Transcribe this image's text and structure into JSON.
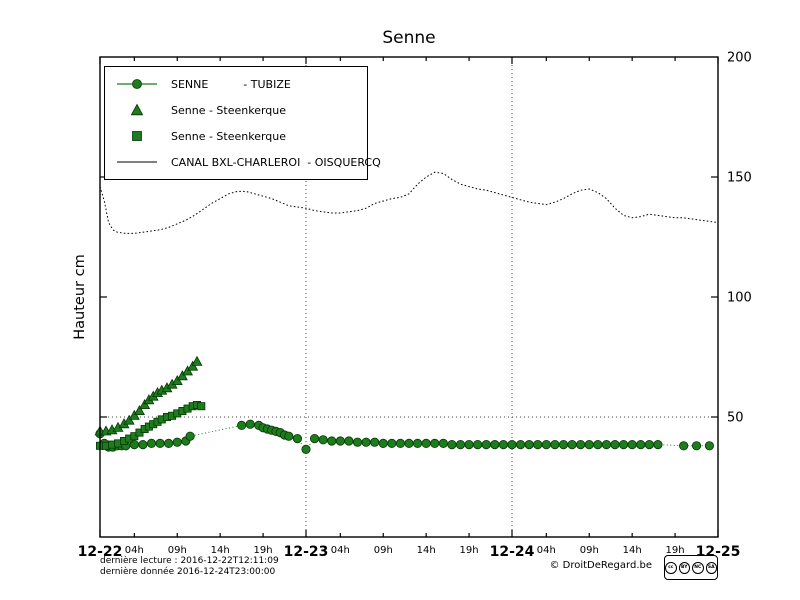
{
  "title": "Senne",
  "ylabel": "Hauteur cm",
  "legend": {
    "items": [
      {
        "label": "SENNE          - TUBIZE",
        "marker": "circle-line"
      },
      {
        "label": "Senne - Steenkerque",
        "marker": "triangle"
      },
      {
        "label": "Senne - Steenkerque",
        "marker": "square"
      },
      {
        "label": "CANAL BXL-CHARLEROI  - OISQUERCQ",
        "marker": "line"
      }
    ]
  },
  "footer": {
    "last_reading": "dernière lecture : 2016-12-22T12:11:09",
    "last_data": "dernière donnée  2016-12-24T23:00:00",
    "credit": "© DroitDeRegard.be",
    "license": "CC BY-NC-SA",
    "license_parts": [
      "cc",
      "BY",
      "NC",
      "SA"
    ]
  },
  "colors": {
    "series_green": "#1e7b1e",
    "series_black": "#000000",
    "grid": "#444444"
  },
  "chart_data": {
    "type": "line",
    "title": "Senne",
    "xlabel": "",
    "ylabel": "Hauteur cm",
    "ylim": [
      0,
      200
    ],
    "x_unit": "hours from 12-22 00:00",
    "xlim": [
      0,
      72
    ],
    "grid": {
      "vertical_t": [
        24,
        48
      ],
      "horizontal_v": [
        50
      ]
    },
    "x_ticks_major": [
      {
        "t": 0,
        "label": "12-22"
      },
      {
        "t": 24,
        "label": "12-23"
      },
      {
        "t": 48,
        "label": "12-24"
      },
      {
        "t": 72,
        "label": "12-25"
      }
    ],
    "x_ticks_minor": [
      {
        "t": 4,
        "label": "04h"
      },
      {
        "t": 9,
        "label": "09h"
      },
      {
        "t": 14,
        "label": "14h"
      },
      {
        "t": 19,
        "label": "19h"
      },
      {
        "t": 28,
        "label": "04h"
      },
      {
        "t": 33,
        "label": "09h"
      },
      {
        "t": 38,
        "label": "14h"
      },
      {
        "t": 43,
        "label": "19h"
      },
      {
        "t": 52,
        "label": "04h"
      },
      {
        "t": 57,
        "label": "09h"
      },
      {
        "t": 62,
        "label": "14h"
      },
      {
        "t": 67,
        "label": "19h"
      }
    ],
    "y_ticks": [
      {
        "v": 50,
        "label": "50"
      },
      {
        "v": 100,
        "label": "100"
      },
      {
        "v": 150,
        "label": "150"
      },
      {
        "v": 200,
        "label": "200"
      }
    ],
    "series": [
      {
        "id": "canal-oisquercq",
        "name": "CANAL BXL-CHARLEROI - OISQUERCQ",
        "marker": "none",
        "line": "dotted",
        "color": "#000000",
        "points": [
          [
            0,
            146
          ],
          [
            0.5,
            140
          ],
          [
            1,
            131
          ],
          [
            1.5,
            128
          ],
          [
            2,
            127
          ],
          [
            3,
            126.5
          ],
          [
            4,
            126.5
          ],
          [
            5,
            127
          ],
          [
            6,
            127.5
          ],
          [
            7,
            128
          ],
          [
            8,
            129
          ],
          [
            9,
            130.5
          ],
          [
            10,
            132
          ],
          [
            11,
            134
          ],
          [
            12,
            136.5
          ],
          [
            13,
            139
          ],
          [
            14,
            141
          ],
          [
            15,
            143
          ],
          [
            16,
            144
          ],
          [
            17,
            144
          ],
          [
            18,
            143
          ],
          [
            19,
            142
          ],
          [
            20,
            141
          ],
          [
            21,
            139.5
          ],
          [
            22,
            138
          ],
          [
            23,
            137.5
          ],
          [
            24,
            137
          ],
          [
            25,
            136
          ],
          [
            26,
            135.5
          ],
          [
            27,
            135
          ],
          [
            28,
            135
          ],
          [
            29,
            135.5
          ],
          [
            30,
            136
          ],
          [
            31,
            137
          ],
          [
            32,
            139
          ],
          [
            33,
            140
          ],
          [
            34,
            141
          ],
          [
            35,
            141.5
          ],
          [
            36,
            143
          ],
          [
            37,
            147
          ],
          [
            38,
            150
          ],
          [
            39,
            152
          ],
          [
            40,
            151.5
          ],
          [
            41,
            149
          ],
          [
            42,
            147
          ],
          [
            43,
            146
          ],
          [
            44,
            145
          ],
          [
            45,
            144.5
          ],
          [
            46,
            143.5
          ],
          [
            47,
            142.5
          ],
          [
            48,
            141.5
          ],
          [
            49,
            140.5
          ],
          [
            50,
            139.5
          ],
          [
            51,
            139
          ],
          [
            52,
            138.5
          ],
          [
            53,
            139.5
          ],
          [
            54,
            141
          ],
          [
            55,
            143
          ],
          [
            56,
            144.5
          ],
          [
            57,
            145
          ],
          [
            58,
            143.5
          ],
          [
            59,
            141
          ],
          [
            60,
            137
          ],
          [
            61,
            134
          ],
          [
            62,
            133
          ],
          [
            63,
            133.5
          ],
          [
            64,
            134.5
          ],
          [
            65,
            134
          ],
          [
            66,
            133.5
          ],
          [
            67,
            133
          ],
          [
            68,
            133
          ],
          [
            69,
            132.5
          ],
          [
            70,
            132
          ],
          [
            71,
            131.5
          ],
          [
            72,
            131
          ]
        ]
      },
      {
        "id": "senne-tubize",
        "name": "SENNE - TUBIZE",
        "marker": "circle",
        "line": "dotted",
        "color": "#1e7b1e",
        "points": [
          [
            0,
            43
          ],
          [
            0.5,
            39
          ],
          [
            1,
            37.5
          ],
          [
            1.5,
            37.5
          ],
          [
            2,
            38
          ],
          [
            2.5,
            38
          ],
          [
            3,
            38
          ],
          [
            4,
            38.5
          ],
          [
            5,
            38.5
          ],
          [
            6,
            39
          ],
          [
            7,
            39
          ],
          [
            8,
            39
          ],
          [
            9,
            39.5
          ],
          [
            10,
            40
          ],
          [
            10.5,
            42
          ],
          [
            16.5,
            46.5
          ],
          [
            17.5,
            47
          ],
          [
            18.5,
            46.5
          ],
          [
            19,
            45.5
          ],
          [
            19.5,
            45
          ],
          [
            20,
            44.5
          ],
          [
            20.5,
            44
          ],
          [
            21,
            43.5
          ],
          [
            21.5,
            42.5
          ],
          [
            22,
            42
          ],
          [
            23,
            41
          ],
          [
            24,
            36.5
          ],
          [
            25,
            41
          ],
          [
            26,
            40.5
          ],
          [
            27,
            40
          ],
          [
            28,
            40
          ],
          [
            29,
            40
          ],
          [
            30,
            39.5
          ],
          [
            31,
            39.5
          ],
          [
            32,
            39.5
          ],
          [
            33,
            39
          ],
          [
            34,
            39
          ],
          [
            35,
            39
          ],
          [
            36,
            39
          ],
          [
            37,
            39
          ],
          [
            38,
            39
          ],
          [
            39,
            39
          ],
          [
            40,
            39
          ],
          [
            41,
            38.5
          ],
          [
            42,
            38.5
          ],
          [
            43,
            38.5
          ],
          [
            44,
            38.5
          ],
          [
            45,
            38.5
          ],
          [
            46,
            38.5
          ],
          [
            47,
            38.5
          ],
          [
            48,
            38.5
          ],
          [
            49,
            38.5
          ],
          [
            50,
            38.5
          ],
          [
            51,
            38.5
          ],
          [
            52,
            38.5
          ],
          [
            53,
            38.5
          ],
          [
            54,
            38.5
          ],
          [
            55,
            38.5
          ],
          [
            56,
            38.5
          ],
          [
            57,
            38.5
          ],
          [
            58,
            38.5
          ],
          [
            59,
            38.5
          ],
          [
            60,
            38.5
          ],
          [
            61,
            38.5
          ],
          [
            62,
            38.5
          ],
          [
            63,
            38.5
          ],
          [
            64,
            38.5
          ],
          [
            65,
            38.5
          ],
          [
            68,
            38
          ],
          [
            69.5,
            38
          ],
          [
            71,
            38
          ]
        ]
      },
      {
        "id": "senne-steenkerque-triangles",
        "name": "Senne - Steenkerque",
        "marker": "triangle",
        "line": "solid",
        "color": "#1e7b1e",
        "points": [
          [
            0,
            44
          ],
          [
            0.7,
            44
          ],
          [
            1.4,
            44.5
          ],
          [
            2.1,
            45.5
          ],
          [
            2.8,
            47
          ],
          [
            3.4,
            48.5
          ],
          [
            4,
            50.5
          ],
          [
            4.6,
            52.5
          ],
          [
            5.2,
            55
          ],
          [
            5.7,
            57
          ],
          [
            6.2,
            58.5
          ],
          [
            6.7,
            60
          ],
          [
            7.2,
            61
          ],
          [
            7.8,
            62
          ],
          [
            8.4,
            63.5
          ],
          [
            9,
            65
          ],
          [
            9.6,
            67
          ],
          [
            10.2,
            69
          ],
          [
            10.8,
            71
          ],
          [
            11.3,
            73
          ]
        ]
      },
      {
        "id": "senne-steenkerque-squares",
        "name": "Senne - Steenkerque",
        "marker": "square",
        "line": "solid",
        "color": "#1e7b1e",
        "points": [
          [
            0,
            38
          ],
          [
            0.7,
            38
          ],
          [
            1.4,
            38.5
          ],
          [
            2.1,
            39
          ],
          [
            2.8,
            40
          ],
          [
            3.4,
            41
          ],
          [
            4,
            42
          ],
          [
            4.6,
            43.5
          ],
          [
            5.2,
            45
          ],
          [
            5.7,
            46
          ],
          [
            6.2,
            47
          ],
          [
            6.7,
            48
          ],
          [
            7.2,
            49
          ],
          [
            7.8,
            50
          ],
          [
            8.4,
            50.5
          ],
          [
            9,
            51.5
          ],
          [
            9.6,
            52.5
          ],
          [
            10.2,
            53.5
          ],
          [
            10.8,
            54.5
          ],
          [
            11.3,
            55
          ],
          [
            11.8,
            54.5
          ]
        ]
      }
    ]
  }
}
